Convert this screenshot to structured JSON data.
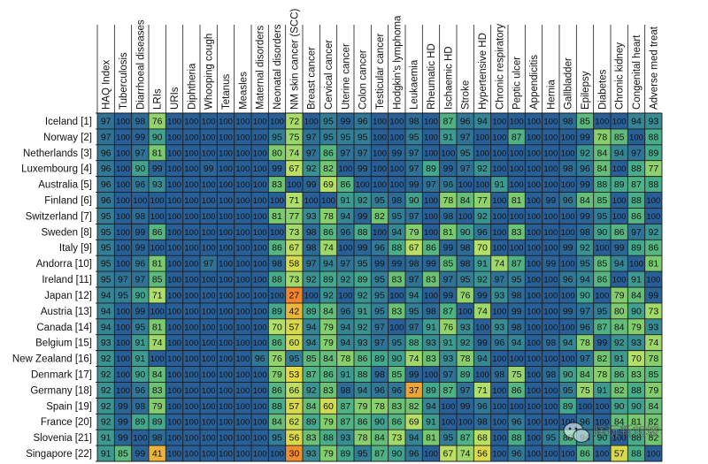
{
  "chart_data": {
    "type": "heatmap",
    "columns": [
      "HAQ Index",
      "Tuberculosis",
      "Diarrhoeal diseases",
      "LRIs",
      "URIs",
      "Diphtheria",
      "Whooping cough",
      "Tetanus",
      "Measles",
      "Maternal disorders",
      "Neonatal disorders",
      "NM skin cancer (SCC)",
      "Breast cancer",
      "Cervical cancer",
      "Uterine cancer",
      "Colon cancer",
      "Testicular cancer",
      "Hodgkin's lymphoma",
      "Leukaemia",
      "Rheumatic HD",
      "Ischaemic HD",
      "Stroke",
      "Hypertensive HD",
      "Chronic respiratory",
      "Peptic ulcer",
      "Appendicitis",
      "Hernia",
      "Gallbladder",
      "Epilepsy",
      "Diabetes",
      "Chronic kidney",
      "Congenital heart",
      "Adverse med treat"
    ],
    "rows": [
      {
        "label": "Iceland [1]",
        "values": [
          97,
          100,
          98,
          76,
          100,
          100,
          100,
          100,
          100,
          100,
          100,
          72,
          100,
          95,
          99,
          96,
          100,
          100,
          98,
          100,
          87,
          96,
          94,
          100,
          100,
          100,
          100,
          98,
          85,
          100,
          100,
          94,
          93
        ]
      },
      {
        "label": "Norway [2]",
        "values": [
          97,
          100,
          99,
          90,
          100,
          100,
          100,
          100,
          100,
          100,
          95,
          75,
          97,
          95,
          95,
          95,
          100,
          100,
          95,
          100,
          91,
          97,
          100,
          100,
          87,
          100,
          100,
          100,
          99,
          78,
          85,
          100,
          88
        ]
      },
      {
        "label": "Netherlands [3]",
        "values": [
          96,
          100,
          97,
          81,
          100,
          100,
          100,
          100,
          100,
          100,
          80,
          74,
          97,
          86,
          97,
          97,
          100,
          99,
          97,
          100,
          100,
          95,
          100,
          100,
          100,
          100,
          100,
          100,
          92,
          84,
          94,
          97,
          89
        ]
      },
      {
        "label": "Luxembourg [4]",
        "values": [
          96,
          100,
          90,
          99,
          100,
          100,
          99,
          100,
          100,
          100,
          99,
          67,
          92,
          82,
          100,
          99,
          100,
          100,
          97,
          89,
          99,
          97,
          92,
          100,
          100,
          100,
          100,
          98,
          96,
          84,
          100,
          88,
          77
        ]
      },
      {
        "label": "Australia [5]",
        "values": [
          96,
          100,
          96,
          93,
          100,
          100,
          100,
          100,
          100,
          100,
          83,
          100,
          99,
          69,
          86,
          100,
          100,
          100,
          99,
          97,
          96,
          100,
          100,
          91,
          100,
          100,
          100,
          100,
          99,
          88,
          89,
          87,
          88
        ]
      },
      {
        "label": "Finland [6]",
        "values": [
          96,
          100,
          100,
          100,
          100,
          100,
          100,
          100,
          100,
          100,
          100,
          71,
          100,
          100,
          91,
          92,
          95,
          98,
          90,
          100,
          78,
          84,
          77,
          100,
          81,
          100,
          99,
          96,
          84,
          85,
          100,
          88,
          100
        ]
      },
      {
        "label": "Switzerland [7]",
        "values": [
          95,
          100,
          98,
          100,
          100,
          100,
          100,
          100,
          100,
          100,
          81,
          77,
          93,
          78,
          94,
          99,
          82,
          95,
          97,
          100,
          98,
          100,
          92,
          100,
          100,
          100,
          100,
          100,
          99,
          95,
          100,
          86,
          100
        ]
      },
      {
        "label": "Sweden [8]",
        "values": [
          95,
          100,
          99,
          86,
          100,
          100,
          100,
          100,
          100,
          100,
          100,
          73,
          98,
          86,
          96,
          88,
          100,
          94,
          79,
          100,
          81,
          90,
          96,
          100,
          83,
          100,
          100,
          100,
          98,
          90,
          86,
          97,
          92
        ]
      },
      {
        "label": "Italy [9]",
        "values": [
          95,
          100,
          99,
          100,
          100,
          100,
          100,
          100,
          100,
          100,
          86,
          67,
          98,
          74,
          100,
          99,
          96,
          88,
          67,
          86,
          99,
          98,
          70,
          100,
          100,
          100,
          100,
          99,
          92,
          100,
          99,
          89,
          86
        ]
      },
      {
        "label": "Andorra [10]",
        "values": [
          95,
          100,
          96,
          81,
          100,
          100,
          97,
          100,
          100,
          100,
          98,
          58,
          97,
          94,
          97,
          95,
          99,
          99,
          98,
          99,
          85,
          98,
          91,
          74,
          87,
          100,
          99,
          100,
          95,
          85,
          94,
          100,
          81
        ]
      },
      {
        "label": "Ireland [11]",
        "values": [
          95,
          97,
          97,
          85,
          100,
          100,
          100,
          100,
          100,
          100,
          88,
          73,
          92,
          89,
          92,
          89,
          95,
          83,
          97,
          83,
          97,
          95,
          92,
          97,
          95,
          100,
          100,
          96,
          94,
          86,
          100,
          91,
          100
        ]
      },
      {
        "label": "Japan [12]",
        "values": [
          94,
          95,
          90,
          71,
          100,
          100,
          100,
          100,
          100,
          100,
          100,
          27,
          100,
          92,
          100,
          92,
          95,
          100,
          94,
          100,
          99,
          76,
          99,
          93,
          98,
          100,
          100,
          100,
          90,
          100,
          79,
          84,
          99
        ]
      },
      {
        "label": "Austria [13]",
        "values": [
          94,
          100,
          99,
          100,
          100,
          100,
          100,
          100,
          100,
          100,
          89,
          42,
          89,
          84,
          96,
          91,
          95,
          83,
          95,
          98,
          87,
          100,
          74,
          100,
          99,
          100,
          100,
          99,
          97,
          95,
          80,
          90,
          73
        ]
      },
      {
        "label": "Canada [14]",
        "values": [
          94,
          100,
          95,
          81,
          100,
          100,
          100,
          100,
          100,
          100,
          70,
          57,
          94,
          79,
          94,
          92,
          97,
          100,
          97,
          91,
          76,
          93,
          100,
          93,
          98,
          100,
          100,
          100,
          96,
          87,
          84,
          79,
          93
        ]
      },
      {
        "label": "Belgium [15]",
        "values": [
          93,
          100,
          91,
          74,
          100,
          100,
          100,
          100,
          100,
          100,
          86,
          60,
          94,
          79,
          94,
          93,
          97,
          95,
          88,
          93,
          91,
          92,
          99,
          96,
          94,
          100,
          98,
          94,
          78,
          99,
          92,
          93,
          74
        ]
      },
      {
        "label": "New Zealand [16]",
        "values": [
          92,
          100,
          91,
          100,
          100,
          100,
          100,
          100,
          100,
          96,
          76,
          95,
          85,
          84,
          78,
          86,
          89,
          90,
          74,
          83,
          93,
          78,
          94,
          100,
          100,
          100,
          100,
          100,
          97,
          82,
          91,
          70,
          78
        ]
      },
      {
        "label": "Denmark [17]",
        "values": [
          92,
          100,
          90,
          84,
          100,
          100,
          100,
          100,
          100,
          100,
          79,
          53,
          87,
          86,
          91,
          88,
          98,
          85,
          99,
          100,
          97,
          89,
          100,
          98,
          75,
          100,
          98,
          90,
          84,
          78,
          86,
          83,
          85
        ]
      },
      {
        "label": "Germany [18]",
        "values": [
          92,
          100,
          96,
          83,
          100,
          100,
          100,
          100,
          100,
          100,
          86,
          66,
          92,
          83,
          98,
          94,
          96,
          96,
          37,
          89,
          87,
          97,
          71,
          100,
          86,
          100,
          100,
          95,
          75,
          91,
          82,
          88,
          79
        ]
      },
      {
        "label": "Spain [19]",
        "values": [
          92,
          99,
          98,
          79,
          100,
          100,
          100,
          100,
          100,
          100,
          88,
          57,
          84,
          60,
          87,
          79,
          78,
          83,
          82,
          94,
          100,
          99,
          96,
          100,
          100,
          100,
          100,
          89,
          100,
          100,
          90,
          90,
          84
        ]
      },
      {
        "label": "France [20]",
        "values": [
          92,
          99,
          89,
          89,
          100,
          100,
          100,
          100,
          100,
          100,
          84,
          62,
          89,
          79,
          87,
          86,
          90,
          86,
          69,
          91,
          100,
          100,
          98,
          100,
          96,
          100,
          100,
          100,
          96,
          100,
          84,
          81,
          82
        ]
      },
      {
        "label": "Slovenia [21]",
        "values": [
          91,
          99,
          100,
          98,
          100,
          100,
          100,
          100,
          100,
          100,
          95,
          56,
          83,
          88,
          93,
          78,
          84,
          73,
          94,
          81,
          95,
          87,
          68,
          100,
          88,
          100,
          95,
          88,
          94,
          90,
          100,
          88,
          82
        ]
      },
      {
        "label": "Singapore [22]",
        "values": [
          91,
          85,
          99,
          41,
          100,
          100,
          100,
          100,
          100,
          100,
          100,
          30,
          93,
          79,
          89,
          95,
          87,
          90,
          96,
          100,
          67,
          74,
          56,
          100,
          96,
          100,
          100,
          100,
          86,
          100,
          57,
          88,
          100
        ]
      }
    ]
  },
  "watermark": {
    "text": "瞎玩新加坡"
  },
  "icons": {
    "watermark": "wechat-icon"
  },
  "colors": {
    "grid": "#1a1a1a",
    "text": "#111111",
    "background": "#ffffff"
  }
}
